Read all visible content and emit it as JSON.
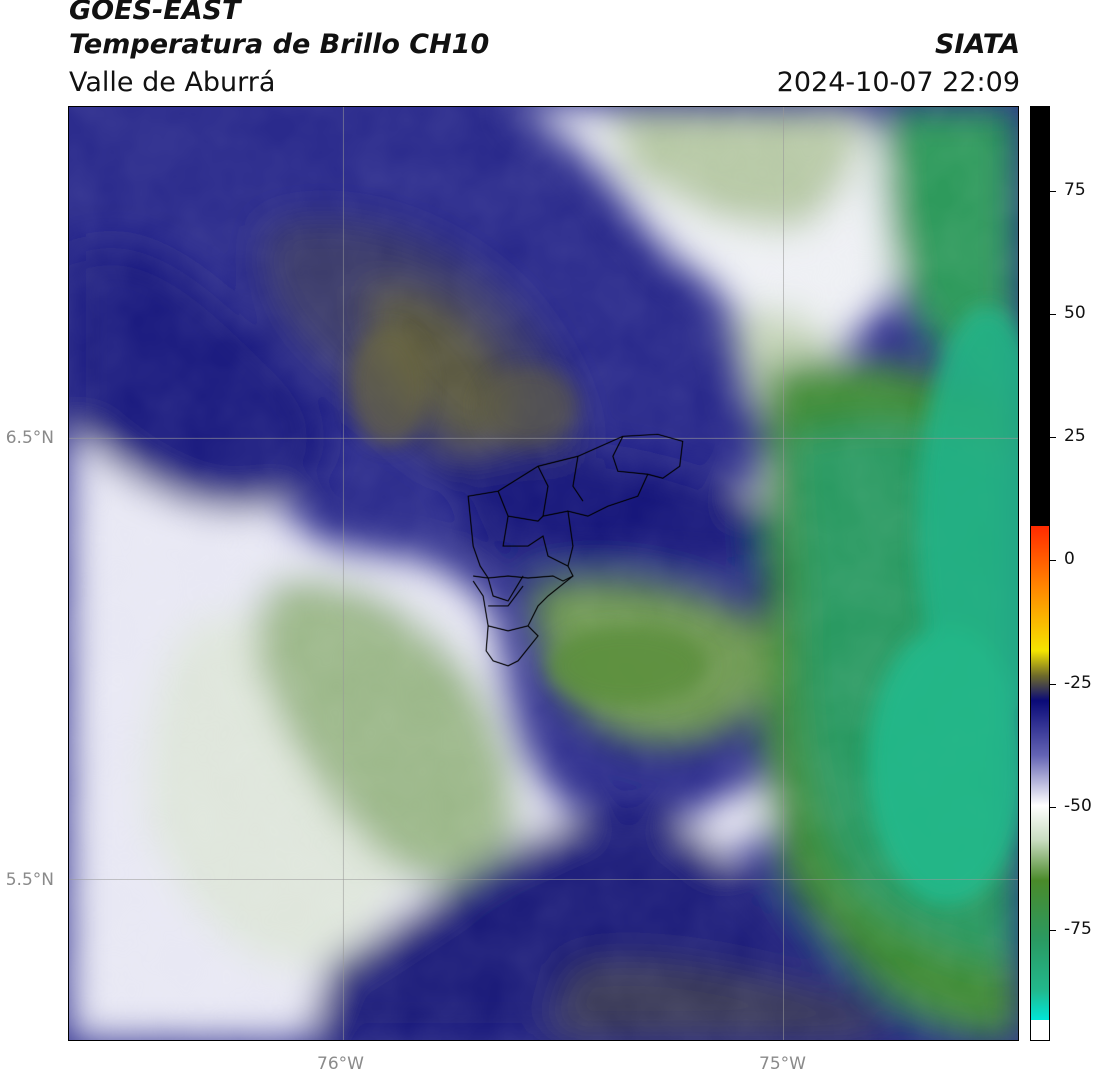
{
  "title": {
    "line1": "GOES-EAST",
    "line2": "Temperatura de Brillo CH10",
    "line3": "Valle de Aburrá",
    "org": "SIATA",
    "datetime": "2024-10-07 22:09"
  },
  "axes": {
    "lat_labels": [
      "6.5°N",
      "5.5°N"
    ],
    "lon_labels": [
      "76°W",
      "75°W"
    ]
  },
  "colorbar": {
    "tick_labels": [
      "75",
      "50",
      "25",
      "0",
      "-25",
      "-50",
      "-75"
    ],
    "range": [
      -95,
      92
    ],
    "colors": {
      "black": "#000000",
      "red": "#ff2a00",
      "orange": "#ff8c00",
      "yellow": "#f4e400",
      "olive": "#6e6a2a",
      "navy": "#0a0a78",
      "white": "#ffffff",
      "green": "#4a8a2a",
      "teal": "#22b88c",
      "cyan": "#00e5d8"
    }
  },
  "map": {
    "description_icon": "brightness-temperature-field",
    "boundary_icon": "valle-de-aburra-municipal-boundaries"
  }
}
